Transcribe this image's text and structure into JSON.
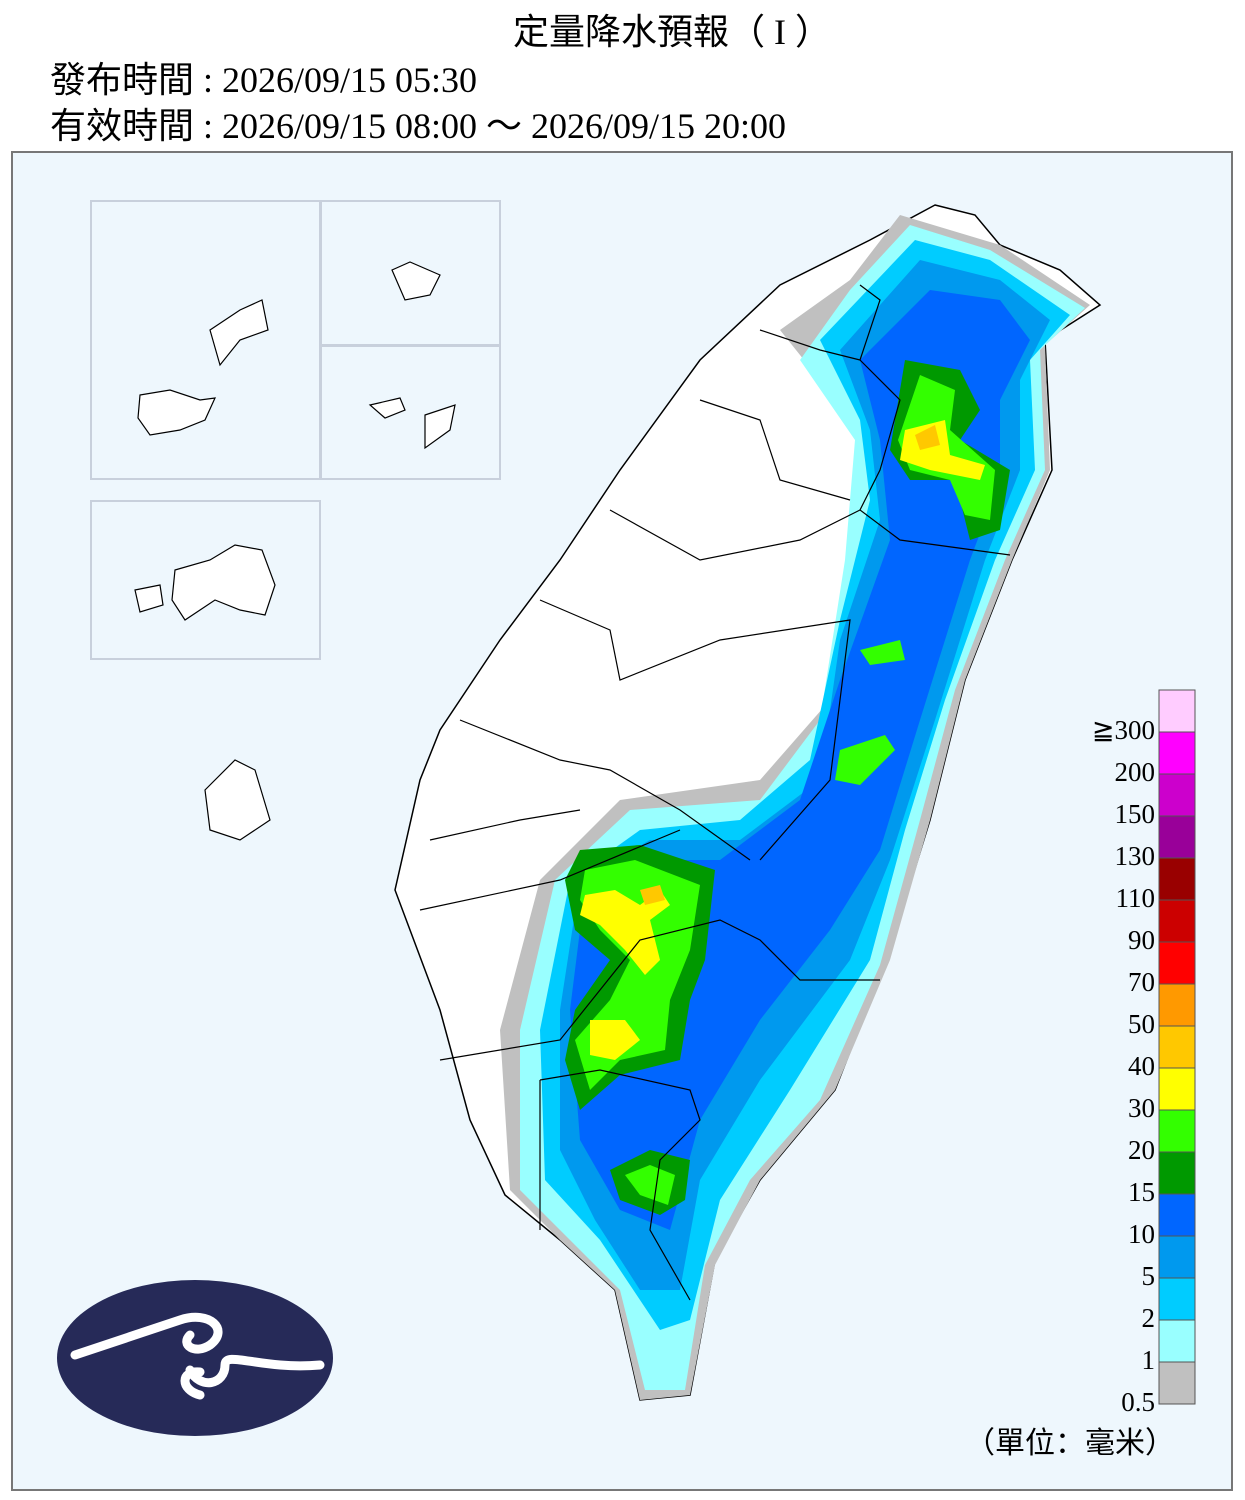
{
  "header": {
    "title": "定量降水預報（ I ）",
    "issued": "發布時間 : 2026/09/15 05:30",
    "valid": "有效時間 : 2026/09/15 08:00 ～ 2026/09/15 20:00"
  },
  "legend": {
    "unit": "（單位：毫米）",
    "items": [
      {
        "label": "≧300",
        "color": "#ffccff"
      },
      {
        "label": "200",
        "color": "#ff00ff"
      },
      {
        "label": "150",
        "color": "#cc00cc"
      },
      {
        "label": "130",
        "color": "#990099"
      },
      {
        "label": "110",
        "color": "#990000"
      },
      {
        "label": "90",
        "color": "#cc0000"
      },
      {
        "label": "70",
        "color": "#ff0000"
      },
      {
        "label": "50",
        "color": "#ff9900"
      },
      {
        "label": "40",
        "color": "#ffc800"
      },
      {
        "label": "30",
        "color": "#ffff00"
      },
      {
        "label": "20",
        "color": "#33ff00"
      },
      {
        "label": "15",
        "color": "#009900"
      },
      {
        "label": "10",
        "color": "#0066ff"
      },
      {
        "label": "5",
        "color": "#0099ee"
      },
      {
        "label": "2",
        "color": "#00ccff"
      },
      {
        "label": "1",
        "color": "#99ffff"
      },
      {
        "label": "0.5",
        "color": "#c0c0c0"
      }
    ]
  }
}
